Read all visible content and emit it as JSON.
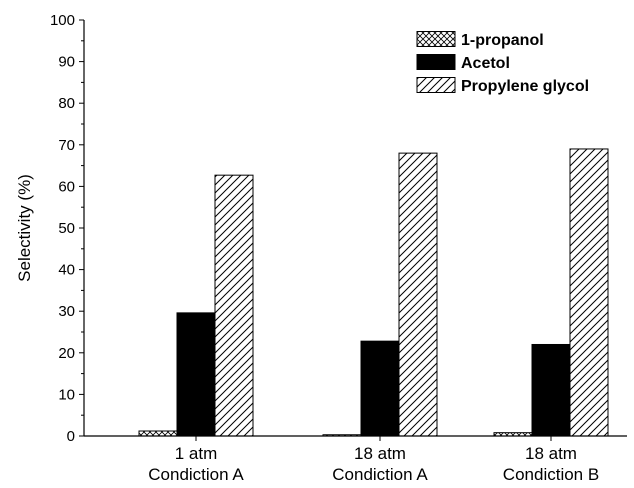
{
  "chart_data": {
    "type": "bar",
    "title": "",
    "xlabel": "",
    "ylabel": "Selectivity (%)",
    "ylim": [
      0,
      100
    ],
    "yticks": [
      0,
      10,
      20,
      30,
      40,
      50,
      60,
      70,
      80,
      90,
      100
    ],
    "categories": [
      [
        "1 atm",
        "Condiction A"
      ],
      [
        "18 atm",
        "Condiction A"
      ],
      [
        "18 atm",
        "Condiction B"
      ]
    ],
    "series": [
      {
        "name": "1-propanol",
        "pattern": "crosshatch",
        "values": [
          1.2,
          0.3,
          0.8
        ]
      },
      {
        "name": "Acetol",
        "pattern": "solid",
        "color": "#000000",
        "values": [
          29.6,
          22.8,
          22.0
        ]
      },
      {
        "name": "Propylene glycol",
        "pattern": "diagonal",
        "values": [
          62.7,
          68.0,
          69.0
        ]
      }
    ],
    "legend_position": "top-right",
    "grid": false
  }
}
